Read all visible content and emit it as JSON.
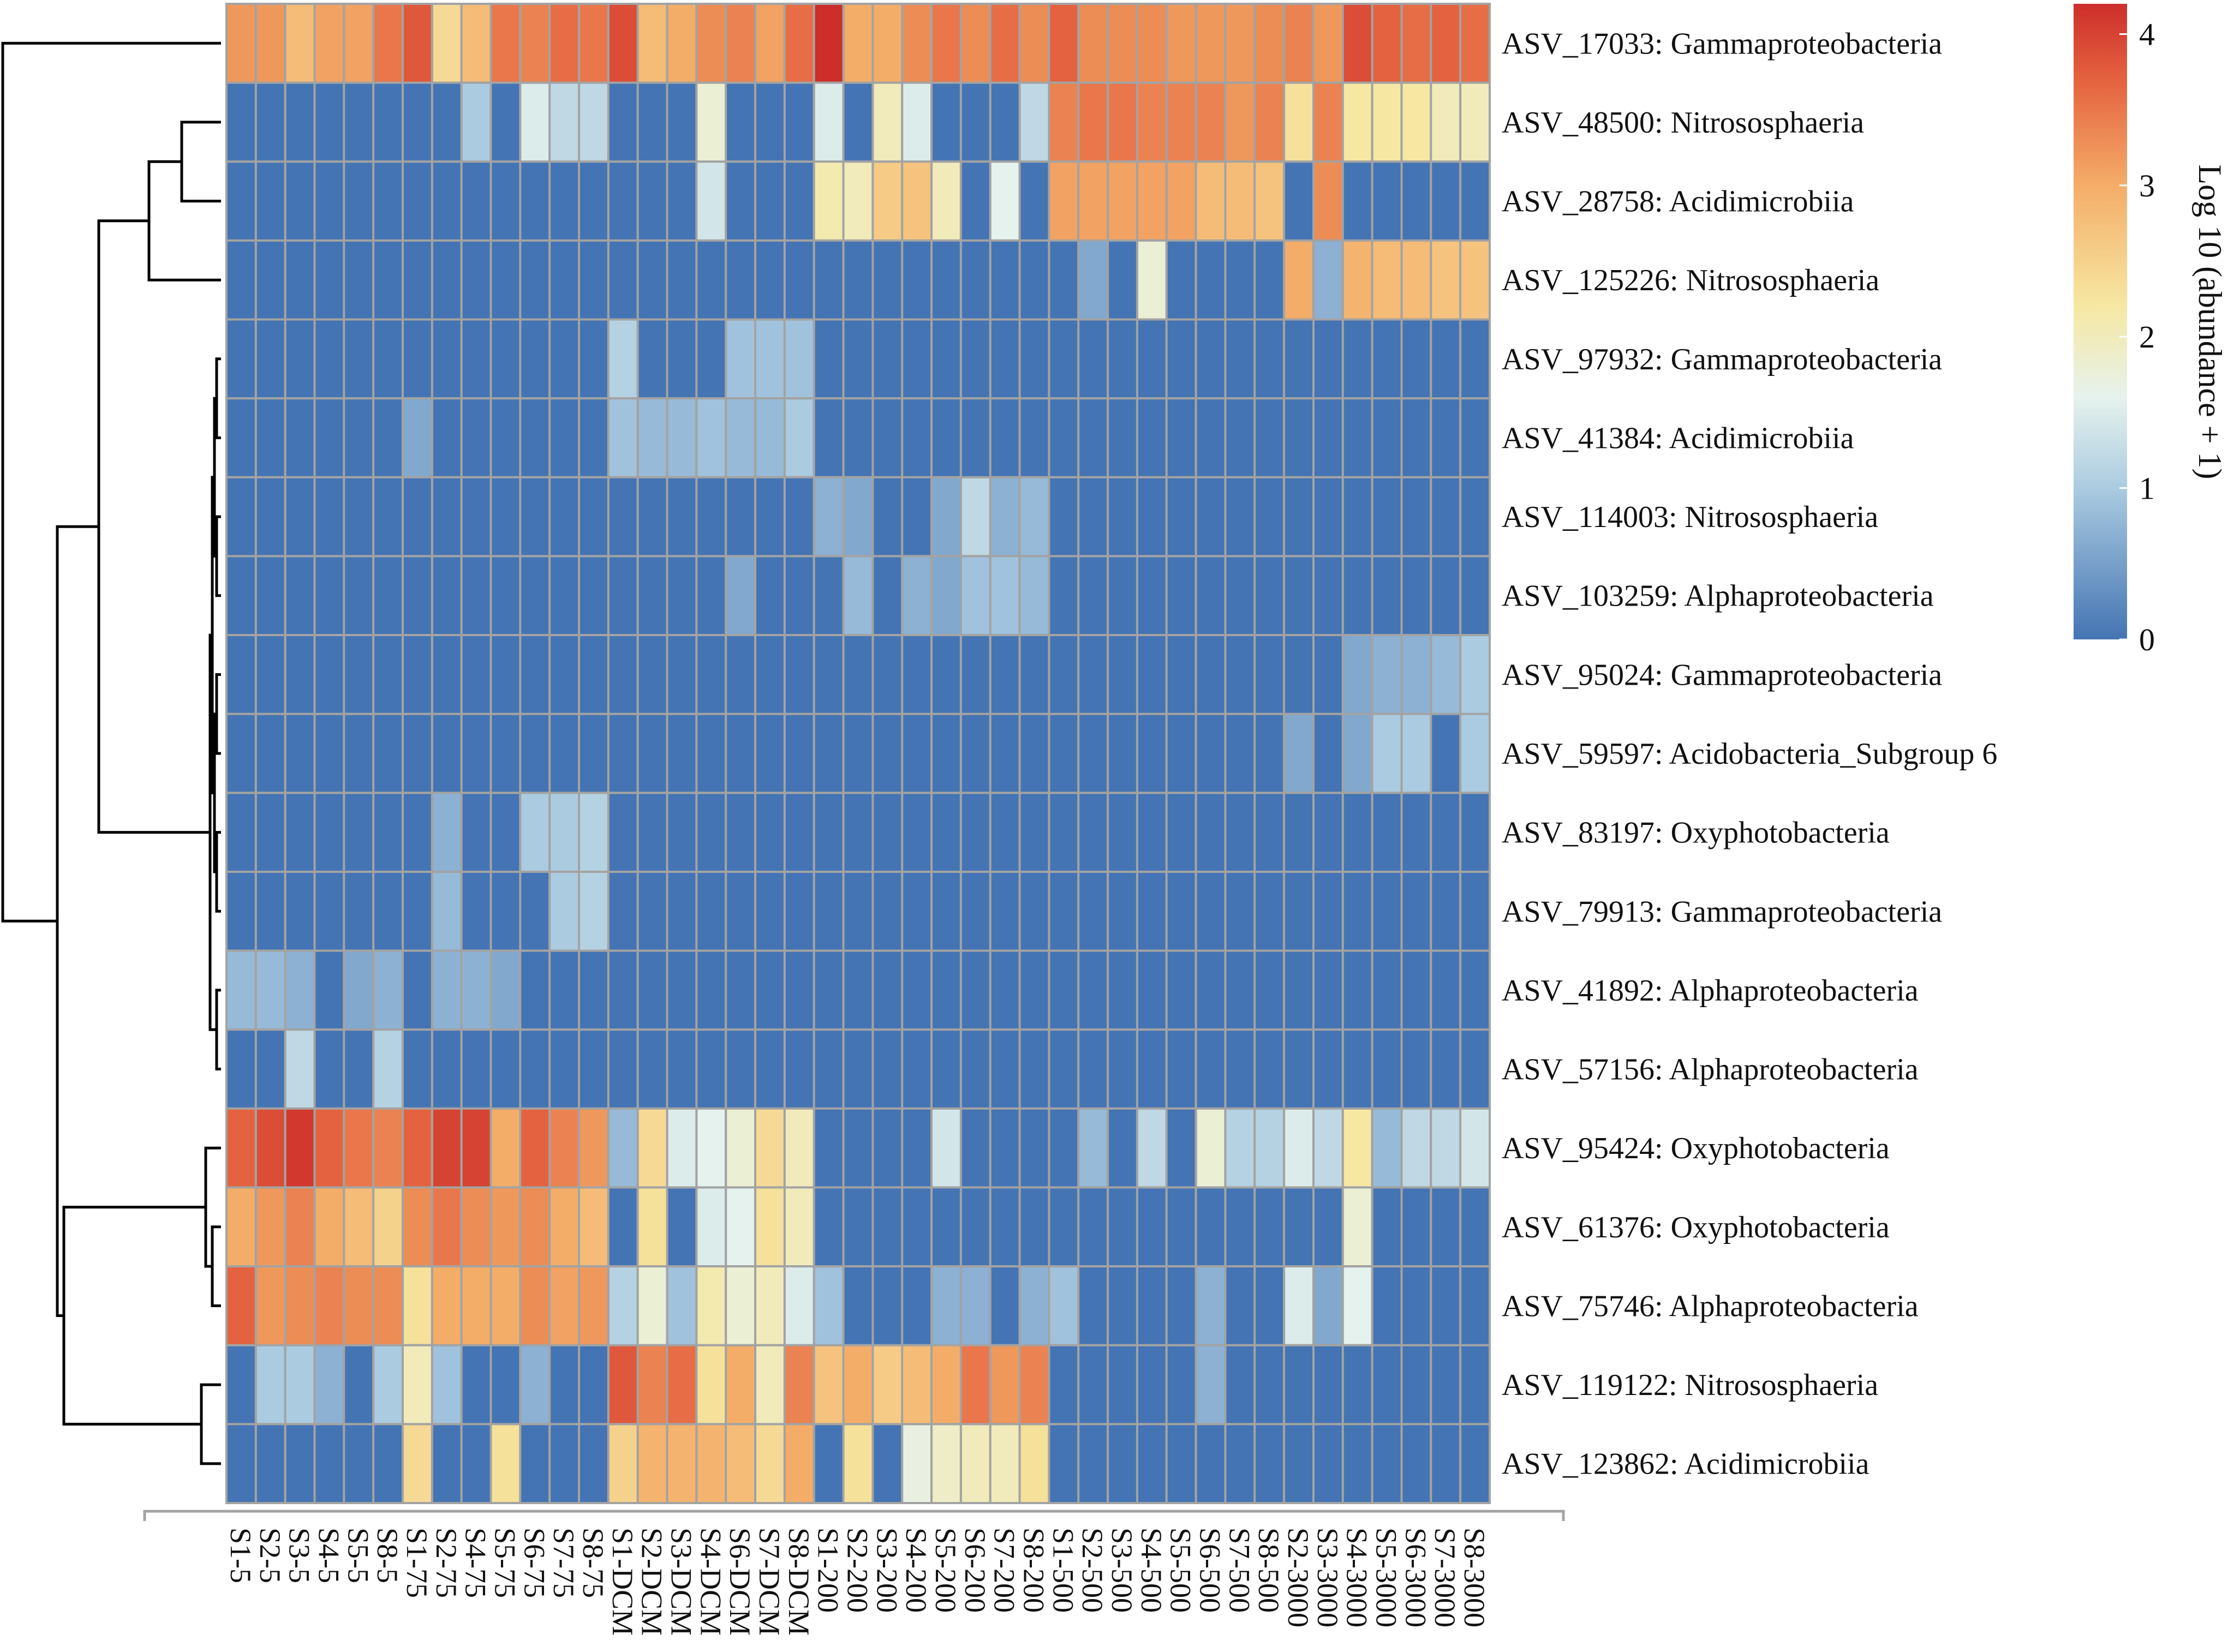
{
  "chart_data": {
    "type": "heatmap",
    "title": "",
    "color_scale": {
      "label": "Log 10 (abundance + 1)",
      "min": 0,
      "max": 4.2,
      "ticks": [
        "0",
        "1",
        "2",
        "3",
        "4"
      ],
      "stops": [
        {
          "value": 0,
          "color": "#4474b3"
        },
        {
          "value": 1,
          "color": "#abcbe0"
        },
        {
          "value": 1.6,
          "color": "#e6f2ed"
        },
        {
          "value": 2.2,
          "color": "#f6e8a2"
        },
        {
          "value": 3,
          "color": "#f4ad68"
        },
        {
          "value": 3.7,
          "color": "#e4623f"
        },
        {
          "value": 4.2,
          "color": "#cd2e2a"
        }
      ]
    },
    "columns": [
      "S1-5",
      "S2-5",
      "S3-5",
      "S4-5",
      "S5-5",
      "S8-5",
      "S1-75",
      "S2-75",
      "S4-75",
      "S5-75",
      "S6-75",
      "S7-75",
      "S8-75",
      "S1-DCM",
      "S2-DCM",
      "S3-DCM",
      "S4-DCM",
      "S6-DCM",
      "S7-DCM",
      "S8-DCM",
      "S1-200",
      "S2-200",
      "S3-200",
      "S4-200",
      "S5-200",
      "S6-200",
      "S7-200",
      "S8-200",
      "S1-500",
      "S2-500",
      "S3-500",
      "S4-500",
      "S5-500",
      "S6-500",
      "S7-500",
      "S8-500",
      "S2-3000",
      "S3-3000",
      "S4-3000",
      "S5-3000",
      "S6-3000",
      "S7-3000",
      "S8-3000"
    ],
    "rows": [
      "ASV_17033: Gammaproteobacteria",
      "ASV_48500: Nitrososphaeria",
      "ASV_28758: Acidimicrobiia",
      "ASV_125226: Nitrososphaeria",
      "ASV_97932: Gammaproteobacteria",
      "ASV_41384: Acidimicrobiia",
      "ASV_114003: Nitrososphaeria",
      "ASV_103259: Alphaproteobacteria",
      "ASV_95024: Gammaproteobacteria",
      "ASV_59597: Acidobacteria_Subgroup 6",
      "ASV_83197: Oxyphotobacteria",
      "ASV_79913: Gammaproteobacteria",
      "ASV_41892: Alphaproteobacteria",
      "ASV_57156: Alphaproteobacteria",
      "ASV_95424: Oxyphotobacteria",
      "ASV_61376: Oxyphotobacteria",
      "ASV_75746: Alphaproteobacteria",
      "ASV_119122: Nitrososphaeria",
      "ASV_123862: Acidimicrobiia"
    ],
    "values": [
      [
        3.2,
        3.2,
        2.8,
        3.1,
        3.1,
        3.5,
        3.8,
        2.4,
        2.8,
        3.5,
        3.4,
        3.6,
        3.5,
        3.9,
        2.8,
        3.0,
        3.3,
        3.4,
        3.1,
        3.6,
        4.2,
        3.0,
        3.0,
        3.3,
        3.5,
        3.3,
        3.6,
        3.3,
        3.7,
        3.3,
        3.3,
        3.3,
        3.2,
        3.2,
        3.2,
        3.3,
        3.4,
        3.2,
        3.9,
        3.7,
        3.6,
        3.7,
        3.6
      ],
      [
        0,
        0,
        0,
        0,
        0,
        0,
        0,
        0,
        1.0,
        0,
        1.5,
        1.2,
        1.2,
        0,
        0,
        0,
        1.8,
        0,
        0,
        0,
        1.5,
        0,
        2.0,
        1.5,
        0,
        0,
        0,
        1.2,
        3.4,
        3.5,
        3.5,
        3.4,
        3.4,
        3.4,
        3.2,
        3.4,
        2.3,
        3.4,
        2.2,
        2.2,
        2.2,
        2.0,
        2.0
      ],
      [
        0,
        0,
        0,
        0,
        0,
        0,
        0,
        0,
        0,
        0,
        0,
        0,
        0,
        0,
        0,
        0,
        1.4,
        0,
        0,
        0,
        2.1,
        2.0,
        2.6,
        2.7,
        2.0,
        0,
        1.6,
        0,
        3.1,
        3.1,
        3.1,
        3.1,
        3.1,
        2.8,
        2.8,
        2.7,
        0,
        3.3,
        0,
        0,
        0,
        0,
        0
      ],
      [
        0,
        0,
        0,
        0,
        0,
        0,
        0,
        0,
        0,
        0,
        0,
        0,
        0,
        0,
        0,
        0,
        0,
        0,
        0,
        0,
        0,
        0,
        0,
        0,
        0,
        0,
        0,
        0,
        0,
        0.6,
        0,
        1.8,
        0,
        0,
        0,
        0,
        3.0,
        0.7,
        2.9,
        2.8,
        2.8,
        2.7,
        2.7
      ],
      [
        0,
        0,
        0,
        0,
        0,
        0,
        0,
        0,
        0,
        0,
        0,
        0,
        0,
        1.1,
        0,
        0,
        0,
        0.9,
        0.9,
        0.9,
        0,
        0,
        0,
        0,
        0,
        0,
        0,
        0,
        0,
        0,
        0,
        0,
        0,
        0,
        0,
        0,
        0,
        0,
        0,
        0,
        0,
        0,
        0
      ],
      [
        0,
        0,
        0,
        0,
        0,
        0,
        0.6,
        0,
        0,
        0,
        0,
        0,
        0,
        0.9,
        0.8,
        0.8,
        0.9,
        0.8,
        0.8,
        1.0,
        0,
        0,
        0,
        0,
        0,
        0,
        0,
        0,
        0,
        0,
        0,
        0,
        0,
        0,
        0,
        0,
        0,
        0,
        0,
        0,
        0,
        0,
        0
      ],
      [
        0,
        0,
        0,
        0,
        0,
        0,
        0,
        0,
        0,
        0,
        0,
        0,
        0,
        0,
        0,
        0,
        0,
        0,
        0,
        0,
        0.7,
        0.6,
        0,
        0,
        0.6,
        1.2,
        0.7,
        0.8,
        0,
        0,
        0,
        0,
        0,
        0,
        0,
        0,
        0,
        0,
        0,
        0,
        0,
        0,
        0
      ],
      [
        0,
        0,
        0,
        0,
        0,
        0,
        0,
        0,
        0,
        0,
        0,
        0,
        0,
        0,
        0,
        0,
        0,
        0.6,
        0,
        0,
        0,
        0.8,
        0,
        0.7,
        0.6,
        0.9,
        0.9,
        0.8,
        0,
        0,
        0,
        0,
        0,
        0,
        0,
        0,
        0,
        0,
        0,
        0,
        0,
        0,
        0
      ],
      [
        0,
        0,
        0,
        0,
        0,
        0,
        0,
        0,
        0,
        0,
        0,
        0,
        0,
        0,
        0,
        0,
        0,
        0,
        0,
        0,
        0,
        0,
        0,
        0,
        0,
        0,
        0,
        0,
        0,
        0,
        0,
        0,
        0,
        0,
        0,
        0,
        0,
        0,
        0.6,
        0.7,
        0.7,
        0.8,
        1.0
      ],
      [
        0,
        0,
        0,
        0,
        0,
        0,
        0,
        0,
        0,
        0,
        0,
        0,
        0,
        0,
        0,
        0,
        0,
        0,
        0,
        0,
        0,
        0,
        0,
        0,
        0,
        0,
        0,
        0,
        0,
        0,
        0,
        0,
        0,
        0,
        0,
        0,
        0.6,
        0,
        0.6,
        1.0,
        1.0,
        0,
        1.0
      ],
      [
        0,
        0,
        0,
        0,
        0,
        0,
        0,
        0.7,
        0,
        0,
        1.0,
        1.0,
        1.1,
        0,
        0,
        0,
        0,
        0,
        0,
        0,
        0,
        0,
        0,
        0,
        0,
        0,
        0,
        0,
        0,
        0,
        0,
        0,
        0,
        0,
        0,
        0,
        0,
        0,
        0,
        0,
        0,
        0,
        0
      ],
      [
        0,
        0,
        0,
        0,
        0,
        0,
        0,
        0.8,
        0,
        0,
        0,
        1.0,
        1.1,
        0,
        0,
        0,
        0,
        0,
        0,
        0,
        0,
        0,
        0,
        0,
        0,
        0,
        0,
        0,
        0,
        0,
        0,
        0,
        0,
        0,
        0,
        0,
        0,
        0,
        0,
        0,
        0,
        0,
        0
      ],
      [
        0.8,
        0.8,
        0.7,
        0,
        0.6,
        0.7,
        0,
        0.7,
        0.7,
        0.6,
        0,
        0,
        0,
        0,
        0,
        0,
        0,
        0,
        0,
        0,
        0,
        0,
        0,
        0,
        0,
        0,
        0,
        0,
        0,
        0,
        0,
        0,
        0,
        0,
        0,
        0,
        0,
        0,
        0,
        0,
        0,
        0,
        0
      ],
      [
        0,
        0,
        1.2,
        0,
        0,
        1.1,
        0,
        0,
        0,
        0,
        0,
        0,
        0,
        0,
        0,
        0,
        0,
        0,
        0,
        0,
        0,
        0,
        0,
        0,
        0,
        0,
        0,
        0,
        0,
        0,
        0,
        0,
        0,
        0,
        0,
        0,
        0,
        0,
        0,
        0,
        0,
        0,
        0
      ],
      [
        3.7,
        3.9,
        4.1,
        3.7,
        3.5,
        3.4,
        3.7,
        4.0,
        4.0,
        3.0,
        3.7,
        3.4,
        3.2,
        0.8,
        2.4,
        1.5,
        1.6,
        1.8,
        2.4,
        2.0,
        0,
        0,
        0,
        0,
        1.4,
        0,
        0,
        0,
        0,
        0.8,
        0,
        1.2,
        0,
        1.8,
        1.1,
        1.1,
        1.5,
        1.2,
        2.2,
        0.8,
        1.2,
        1.2,
        1.4
      ],
      [
        3.0,
        3.2,
        3.4,
        3.0,
        2.8,
        2.5,
        3.3,
        3.5,
        3.3,
        3.2,
        3.3,
        3.0,
        2.8,
        0,
        2.3,
        0,
        1.5,
        1.6,
        2.3,
        2.0,
        0,
        0,
        0,
        0,
        0,
        0,
        0,
        0,
        0,
        0,
        0,
        0,
        0,
        0,
        0,
        0,
        0,
        0,
        1.8,
        0,
        0,
        0,
        0
      ],
      [
        3.7,
        3.2,
        3.3,
        3.4,
        3.3,
        3.3,
        2.3,
        3.0,
        3.0,
        3.0,
        3.3,
        3.1,
        3.2,
        1.1,
        1.8,
        0.9,
        2.1,
        1.8,
        2.0,
        1.5,
        0.9,
        0,
        0,
        0,
        0.7,
        0.7,
        0,
        0.7,
        0.9,
        0,
        0,
        0,
        0,
        0.7,
        0,
        0,
        1.5,
        0.6,
        1.6,
        0,
        0,
        0,
        0
      ],
      [
        0,
        1.0,
        1.0,
        0.7,
        0,
        1.0,
        2.0,
        0.9,
        0,
        0,
        0.7,
        0,
        0,
        3.8,
        3.4,
        3.6,
        2.3,
        3.0,
        2.0,
        3.4,
        2.7,
        3.0,
        2.6,
        2.8,
        3.0,
        3.5,
        3.2,
        3.4,
        0,
        0,
        0,
        0,
        0,
        0.7,
        0,
        0,
        0,
        0,
        0,
        0,
        0,
        0,
        0
      ],
      [
        0,
        0,
        0,
        0,
        0,
        0,
        2.4,
        0,
        0,
        2.3,
        0,
        0,
        0,
        2.5,
        2.9,
        2.9,
        2.9,
        2.8,
        2.4,
        3.0,
        0,
        2.3,
        0,
        1.7,
        1.9,
        2.0,
        2.0,
        2.3,
        0,
        0,
        0,
        0,
        0,
        0,
        0,
        0,
        0,
        0,
        0,
        0,
        0,
        0,
        0
      ]
    ],
    "row_dendrogram": {
      "linkage_order_note": "rows listed top to bottom; merges reference row indices (r) and prior merge nodes (m)",
      "merges": [
        {
          "id": "m0",
          "children": [
            "r1",
            "r2"
          ],
          "height": 0.18
        },
        {
          "id": "m1",
          "children": [
            "m0",
            "r3"
          ],
          "height": 0.33
        },
        {
          "id": "m2",
          "children": [
            "r4",
            "r5"
          ],
          "height": 0.02
        },
        {
          "id": "m3",
          "children": [
            "r6",
            "r7"
          ],
          "height": 0.02
        },
        {
          "id": "m4",
          "children": [
            "m2",
            "m3"
          ],
          "height": 0.03
        },
        {
          "id": "m5",
          "children": [
            "r8",
            "r9"
          ],
          "height": 0.02
        },
        {
          "id": "m6",
          "children": [
            "r10",
            "r11"
          ],
          "height": 0.02
        },
        {
          "id": "m7",
          "children": [
            "m5",
            "m6"
          ],
          "height": 0.03
        },
        {
          "id": "m8",
          "children": [
            "m4",
            "m7"
          ],
          "height": 0.04
        },
        {
          "id": "m9",
          "children": [
            "r12",
            "r13"
          ],
          "height": 0.02
        },
        {
          "id": "m10",
          "children": [
            "m8",
            "m9"
          ],
          "height": 0.05
        },
        {
          "id": "m11",
          "children": [
            "m1",
            "m10"
          ],
          "height": 0.56
        },
        {
          "id": "m12",
          "children": [
            "r15",
            "r16"
          ],
          "height": 0.04
        },
        {
          "id": "m13",
          "children": [
            "r14",
            "m12"
          ],
          "height": 0.07
        },
        {
          "id": "m14",
          "children": [
            "r17",
            "r18"
          ],
          "height": 0.09
        },
        {
          "id": "m15",
          "children": [
            "m13",
            "m14"
          ],
          "height": 0.72
        },
        {
          "id": "m16",
          "children": [
            "m11",
            "m15"
          ],
          "height": 0.75
        },
        {
          "id": "m17",
          "children": [
            "r0",
            "m16"
          ],
          "height": 1.0
        }
      ]
    }
  }
}
